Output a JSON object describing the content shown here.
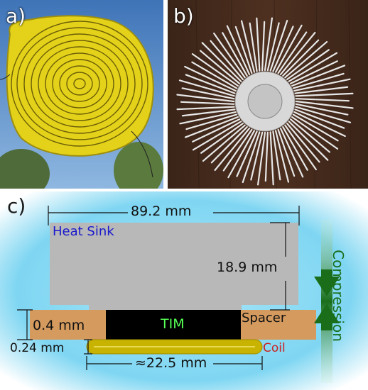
{
  "panels": {
    "a": {
      "label": "a)"
    },
    "b": {
      "label": "b)"
    },
    "c": {
      "label": "c)"
    }
  },
  "diagram": {
    "dims": {
      "width_total": "89.2 mm",
      "height_sink": "18.9 mm",
      "spacer_thickness": "0.4 mm",
      "coil_thickness": "0.24 mm",
      "coil_diameter": "≈22.5 mm"
    },
    "labels": {
      "heat_sink": "Heat Sink",
      "tim": "TIM",
      "spacer": "Spacer",
      "coil": "Coil",
      "compression": "Compression"
    },
    "colors": {
      "heat_sink": "#b8b8b8",
      "spacer": "#d49a5e",
      "tim": "#000000",
      "tim_text": "#55ff55",
      "coil": "#c8b400",
      "heat_sink_label": "#1a1acc",
      "coil_label": "#cc2222",
      "compression": "#1a6e1a",
      "background": "#7fd6f2"
    }
  }
}
